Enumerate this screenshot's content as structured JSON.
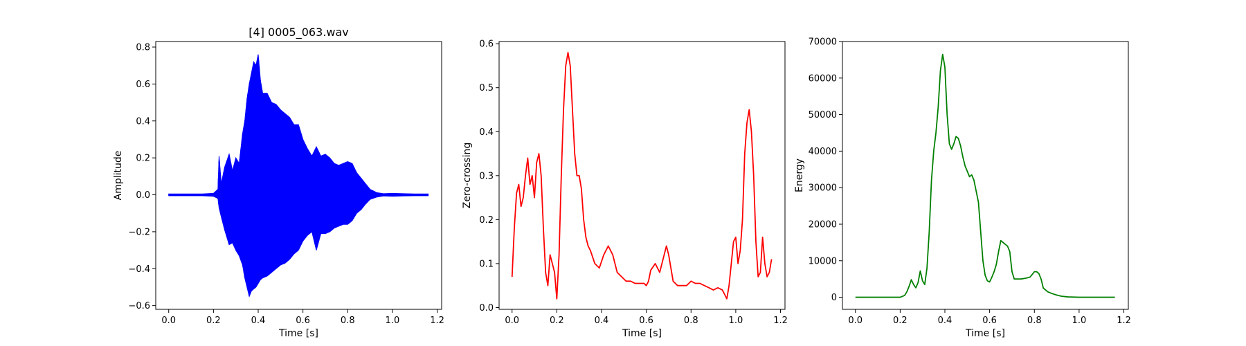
{
  "chart_data": [
    {
      "type": "line",
      "title": "[4] 0005_063.wav",
      "xlabel": "Time [s]",
      "ylabel": "Amplitude",
      "xlim": [
        -0.058,
        1.22
      ],
      "ylim": [
        -0.62,
        0.83
      ],
      "xticks": [
        0.0,
        0.2,
        0.4,
        0.6,
        0.8,
        1.0,
        1.2
      ],
      "xtick_labels": [
        "0.0",
        "0.2",
        "0.4",
        "0.6",
        "0.8",
        "1.0",
        "1.2"
      ],
      "yticks": [
        -0.6,
        -0.4,
        -0.2,
        0.0,
        0.2,
        0.4,
        0.6,
        0.8
      ],
      "ytick_labels": [
        "−0.6",
        "−0.4",
        "−0.2",
        "0.0",
        "0.2",
        "0.4",
        "0.6",
        "0.8"
      ],
      "grid": false,
      "color": "#0000ff",
      "rendering": "waveform-envelope",
      "series": [
        {
          "x": [
            0.0,
            0.05,
            0.1,
            0.15,
            0.2,
            0.22,
            0.225,
            0.235,
            0.25,
            0.27,
            0.285,
            0.3,
            0.315,
            0.33,
            0.34,
            0.35,
            0.36,
            0.37,
            0.38,
            0.39,
            0.4,
            0.41,
            0.42,
            0.44,
            0.46,
            0.48,
            0.5,
            0.52,
            0.54,
            0.56,
            0.58,
            0.6,
            0.62,
            0.64,
            0.66,
            0.68,
            0.7,
            0.72,
            0.74,
            0.76,
            0.78,
            0.8,
            0.82,
            0.84,
            0.86,
            0.88,
            0.9,
            0.93,
            0.96,
            1.0,
            1.05,
            1.1,
            1.16
          ],
          "upper": [
            0.005,
            0.005,
            0.005,
            0.005,
            0.008,
            0.03,
            0.21,
            0.06,
            0.15,
            0.22,
            0.13,
            0.2,
            0.17,
            0.33,
            0.4,
            0.52,
            0.6,
            0.66,
            0.72,
            0.7,
            0.76,
            0.62,
            0.55,
            0.55,
            0.5,
            0.49,
            0.46,
            0.44,
            0.42,
            0.38,
            0.38,
            0.3,
            0.25,
            0.21,
            0.26,
            0.21,
            0.22,
            0.2,
            0.17,
            0.16,
            0.17,
            0.18,
            0.17,
            0.12,
            0.09,
            0.06,
            0.03,
            0.012,
            0.006,
            0.008,
            0.006,
            0.005,
            0.005
          ],
          "lower": [
            -0.005,
            -0.005,
            -0.005,
            -0.005,
            -0.008,
            -0.02,
            -0.07,
            -0.12,
            -0.19,
            -0.27,
            -0.26,
            -0.3,
            -0.33,
            -0.38,
            -0.45,
            -0.5,
            -0.55,
            -0.52,
            -0.51,
            -0.5,
            -0.48,
            -0.46,
            -0.45,
            -0.44,
            -0.42,
            -0.4,
            -0.38,
            -0.37,
            -0.35,
            -0.32,
            -0.3,
            -0.25,
            -0.22,
            -0.2,
            -0.3,
            -0.21,
            -0.21,
            -0.2,
            -0.18,
            -0.17,
            -0.16,
            -0.16,
            -0.14,
            -0.1,
            -0.08,
            -0.05,
            -0.025,
            -0.012,
            -0.006,
            -0.008,
            -0.006,
            -0.005,
            -0.005
          ]
        }
      ]
    },
    {
      "type": "line",
      "title": "",
      "xlabel": "Time [s]",
      "ylabel": "Zero-crossing",
      "xlim": [
        -0.058,
        1.22
      ],
      "ylim": [
        -0.004,
        0.605
      ],
      "xticks": [
        0.0,
        0.2,
        0.4,
        0.6,
        0.8,
        1.0,
        1.2
      ],
      "xtick_labels": [
        "0.0",
        "0.2",
        "0.4",
        "0.6",
        "0.8",
        "1.0",
        "1.2"
      ],
      "yticks": [
        0.0,
        0.1,
        0.2,
        0.3,
        0.4,
        0.5,
        0.6
      ],
      "ytick_labels": [
        "0.0",
        "0.1",
        "0.2",
        "0.3",
        "0.4",
        "0.5",
        "0.6"
      ],
      "grid": false,
      "color": "#ff0000",
      "series": [
        {
          "x": [
            0.0,
            0.01,
            0.02,
            0.03,
            0.04,
            0.05,
            0.06,
            0.07,
            0.08,
            0.09,
            0.1,
            0.11,
            0.12,
            0.13,
            0.14,
            0.15,
            0.16,
            0.17,
            0.18,
            0.19,
            0.2,
            0.21,
            0.22,
            0.23,
            0.24,
            0.25,
            0.26,
            0.27,
            0.28,
            0.29,
            0.3,
            0.31,
            0.32,
            0.33,
            0.34,
            0.35,
            0.37,
            0.39,
            0.41,
            0.43,
            0.45,
            0.47,
            0.49,
            0.51,
            0.53,
            0.55,
            0.57,
            0.59,
            0.6,
            0.61,
            0.62,
            0.64,
            0.66,
            0.68,
            0.69,
            0.7,
            0.72,
            0.74,
            0.76,
            0.78,
            0.8,
            0.82,
            0.84,
            0.86,
            0.88,
            0.9,
            0.92,
            0.94,
            0.95,
            0.96,
            0.97,
            0.98,
            0.99,
            1.0,
            1.01,
            1.02,
            1.03,
            1.04,
            1.05,
            1.06,
            1.07,
            1.08,
            1.09,
            1.1,
            1.11,
            1.12,
            1.13,
            1.14,
            1.15,
            1.16
          ],
          "y": [
            0.07,
            0.18,
            0.26,
            0.28,
            0.23,
            0.25,
            0.3,
            0.34,
            0.28,
            0.3,
            0.25,
            0.33,
            0.35,
            0.3,
            0.18,
            0.08,
            0.05,
            0.12,
            0.1,
            0.08,
            0.02,
            0.12,
            0.3,
            0.45,
            0.55,
            0.58,
            0.55,
            0.45,
            0.35,
            0.3,
            0.3,
            0.27,
            0.2,
            0.16,
            0.14,
            0.13,
            0.1,
            0.09,
            0.12,
            0.14,
            0.12,
            0.08,
            0.07,
            0.06,
            0.06,
            0.055,
            0.055,
            0.055,
            0.05,
            0.06,
            0.085,
            0.1,
            0.08,
            0.12,
            0.14,
            0.12,
            0.06,
            0.05,
            0.05,
            0.05,
            0.06,
            0.055,
            0.055,
            0.05,
            0.045,
            0.04,
            0.045,
            0.04,
            0.03,
            0.02,
            0.05,
            0.1,
            0.15,
            0.16,
            0.1,
            0.13,
            0.2,
            0.35,
            0.42,
            0.45,
            0.4,
            0.3,
            0.15,
            0.07,
            0.08,
            0.16,
            0.1,
            0.07,
            0.08,
            0.11
          ]
        }
      ]
    },
    {
      "type": "line",
      "title": "",
      "xlabel": "Time [s]",
      "ylabel": "Energy",
      "xlim": [
        -0.058,
        1.22
      ],
      "ylim": [
        -3300,
        70000
      ],
      "xticks": [
        0.0,
        0.2,
        0.4,
        0.6,
        0.8,
        1.0,
        1.2
      ],
      "xtick_labels": [
        "0.0",
        "0.2",
        "0.4",
        "0.6",
        "0.8",
        "1.0",
        "1.2"
      ],
      "yticks": [
        0,
        10000,
        20000,
        30000,
        40000,
        50000,
        60000,
        70000
      ],
      "ytick_labels": [
        "0",
        "10000",
        "20000",
        "30000",
        "40000",
        "50000",
        "60000",
        "70000"
      ],
      "grid": false,
      "color": "#008000",
      "series": [
        {
          "x": [
            0.0,
            0.1,
            0.2,
            0.22,
            0.23,
            0.24,
            0.25,
            0.26,
            0.27,
            0.28,
            0.29,
            0.3,
            0.31,
            0.32,
            0.33,
            0.34,
            0.35,
            0.36,
            0.37,
            0.38,
            0.39,
            0.4,
            0.41,
            0.42,
            0.43,
            0.44,
            0.45,
            0.46,
            0.47,
            0.48,
            0.49,
            0.5,
            0.51,
            0.52,
            0.53,
            0.54,
            0.55,
            0.56,
            0.57,
            0.58,
            0.59,
            0.6,
            0.61,
            0.62,
            0.63,
            0.64,
            0.65,
            0.66,
            0.67,
            0.68,
            0.69,
            0.7,
            0.71,
            0.72,
            0.74,
            0.76,
            0.78,
            0.79,
            0.8,
            0.81,
            0.82,
            0.83,
            0.84,
            0.86,
            0.88,
            0.9,
            0.92,
            0.95,
            1.0,
            1.05,
            1.1,
            1.16
          ],
          "y": [
            0,
            0,
            0,
            500,
            1500,
            3000,
            4800,
            3500,
            2600,
            4000,
            7200,
            4500,
            3500,
            8000,
            18000,
            32000,
            40000,
            45000,
            52000,
            62000,
            66500,
            63000,
            50000,
            42000,
            40500,
            42000,
            44000,
            43500,
            41500,
            38500,
            36000,
            34500,
            33000,
            33500,
            32000,
            29000,
            26000,
            18000,
            10000,
            6000,
            4500,
            4200,
            5500,
            7000,
            9000,
            12500,
            15500,
            15000,
            14500,
            14000,
            12500,
            7000,
            5000,
            5000,
            5000,
            5200,
            5500,
            6200,
            7000,
            7000,
            6500,
            5000,
            2500,
            1500,
            1000,
            600,
            300,
            100,
            0,
            0,
            0,
            0
          ]
        }
      ]
    }
  ]
}
